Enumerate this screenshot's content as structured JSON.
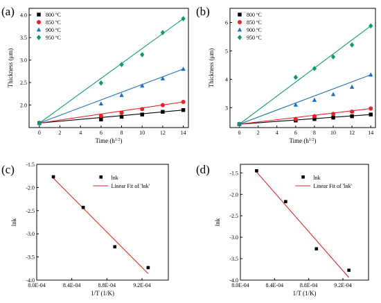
{
  "chart_data": [
    {
      "panel": "(a)",
      "type": "scatter",
      "xlabel": "Time (h",
      "xlabel_sup": "1/2",
      "xlabel_end": ")",
      "ylabel": "Thickness (μm)",
      "xlim": [
        -1,
        14.5
      ],
      "ylim": [
        1.5,
        4.15
      ],
      "xticks": [
        0,
        2,
        4,
        6,
        8,
        10,
        12,
        14
      ],
      "yticks": [
        2.0,
        2.5,
        3.0,
        3.5,
        4.0
      ],
      "ytick_labels": [
        "2.0",
        "2.5",
        "3.0",
        "3.5",
        "4.0"
      ],
      "legend_position": "top-left",
      "series": [
        {
          "name": "800 ºC",
          "color": "#000000",
          "marker": "square",
          "x": [
            0,
            6,
            8,
            10,
            12,
            14
          ],
          "y": [
            1.6,
            1.68,
            1.74,
            1.79,
            1.85,
            1.89
          ]
        },
        {
          "name": "850 ºC",
          "color": "#e8212b",
          "marker": "circle",
          "x": [
            0,
            6,
            8,
            10,
            12,
            14
          ],
          "y": [
            1.6,
            1.76,
            1.83,
            1.91,
            2.0,
            2.07
          ]
        },
        {
          "name": "900 ºC",
          "color": "#1f6fbf",
          "marker": "triangle",
          "x": [
            0,
            6,
            8,
            10,
            12,
            14
          ],
          "y": [
            1.6,
            2.03,
            2.22,
            2.43,
            2.59,
            2.8
          ]
        },
        {
          "name": "950 ºC",
          "color": "#0b9a72",
          "marker": "diamond",
          "x": [
            0,
            6,
            8,
            10,
            12,
            14
          ],
          "y": [
            1.6,
            2.49,
            2.9,
            3.12,
            3.61,
            3.92
          ]
        }
      ]
    },
    {
      "panel": "(b)",
      "type": "scatter",
      "xlabel": "Time (h",
      "xlabel_sup": "1/2",
      "xlabel_end": ")",
      "ylabel": "Thickness (μm)",
      "xlim": [
        -1,
        14.5
      ],
      "ylim": [
        2.3,
        6.5
      ],
      "xticks": [
        0,
        2,
        4,
        6,
        8,
        10,
        12,
        14
      ],
      "yticks": [
        3,
        4,
        5,
        6
      ],
      "ytick_labels": [
        "3",
        "4",
        "5",
        "6"
      ],
      "legend_position": "top-left",
      "series": [
        {
          "name": "800 ºC",
          "color": "#000000",
          "marker": "square",
          "x": [
            0,
            6,
            8,
            10,
            12,
            14
          ],
          "y": [
            2.42,
            2.55,
            2.6,
            2.65,
            2.7,
            2.76
          ]
        },
        {
          "name": "850 ºC",
          "color": "#e8212b",
          "marker": "circle",
          "x": [
            0,
            6,
            8,
            10,
            12,
            14
          ],
          "y": [
            2.42,
            2.6,
            2.7,
            2.78,
            2.86,
            2.97
          ]
        },
        {
          "name": "900 ºC",
          "color": "#1f6fbf",
          "marker": "triangle",
          "x": [
            0,
            6,
            8,
            10,
            12,
            14
          ],
          "y": [
            2.42,
            3.1,
            3.27,
            3.47,
            3.73,
            4.16
          ]
        },
        {
          "name": "950 ºC",
          "color": "#0b9a72",
          "marker": "diamond",
          "x": [
            0,
            6,
            8,
            10,
            12,
            14
          ],
          "y": [
            2.42,
            4.07,
            4.38,
            4.79,
            5.21,
            5.88
          ]
        }
      ]
    },
    {
      "panel": "(c)",
      "type": "scatter",
      "xlabel": "1/T (1/K)",
      "ylabel": "lnk",
      "xlim": [
        0.0008,
        0.00095
      ],
      "ylim": [
        -4.0,
        -1.5
      ],
      "xticks": [
        0.0008,
        0.00084,
        0.00088,
        0.00092
      ],
      "xtick_labels": [
        "8.0E-04",
        "8.4E-04",
        "8.8E-04",
        "9.2E-04"
      ],
      "yticks": [
        -4.0,
        -3.5,
        -3.0,
        -2.5,
        -2.0,
        -1.5
      ],
      "ytick_labels": [
        "-4.0",
        "-3.5",
        "-3.0",
        "-2.5",
        "-2.0",
        "-1.5"
      ],
      "legend_position": "top-right",
      "points_name": "lnk",
      "fit_name": "Linear Fit of 'lnk'",
      "points": {
        "x": [
          0.000819,
          0.000853,
          0.000889,
          0.000927
        ],
        "y": [
          -1.77,
          -2.43,
          -3.28,
          -3.73
        ]
      },
      "fit": {
        "x": [
          0.000819,
          0.000927
        ],
        "y": [
          -1.8,
          -3.86
        ]
      }
    },
    {
      "panel": "(d)",
      "type": "scatter",
      "xlabel": "1/T (1/K)",
      "ylabel": "lnk",
      "xlim": [
        0.0008,
        0.00095
      ],
      "ylim": [
        -4.0,
        -1.3
      ],
      "xticks": [
        0.0008,
        0.00084,
        0.00088,
        0.00092
      ],
      "xtick_labels": [
        "8.0E-04",
        "8.4E-04",
        "8.8E-04",
        "9.2E-04"
      ],
      "yticks": [
        -4.0,
        -3.5,
        -3.0,
        -2.5,
        -2.0,
        -1.5
      ],
      "ytick_labels": [
        "-4.0",
        "-3.5",
        "-3.0",
        "-2.5",
        "-2.0",
        "-1.5"
      ],
      "legend_position": "top-right",
      "points_name": "lnk",
      "fit_name": "Linear Fit of 'lnk'",
      "points": {
        "x": [
          0.000819,
          0.000853,
          0.000889,
          0.000927
        ],
        "y": [
          -1.45,
          -2.17,
          -3.27,
          -3.77
        ]
      },
      "fit": {
        "x": [
          0.000819,
          0.000927
        ],
        "y": [
          -1.48,
          -3.94
        ]
      }
    }
  ]
}
